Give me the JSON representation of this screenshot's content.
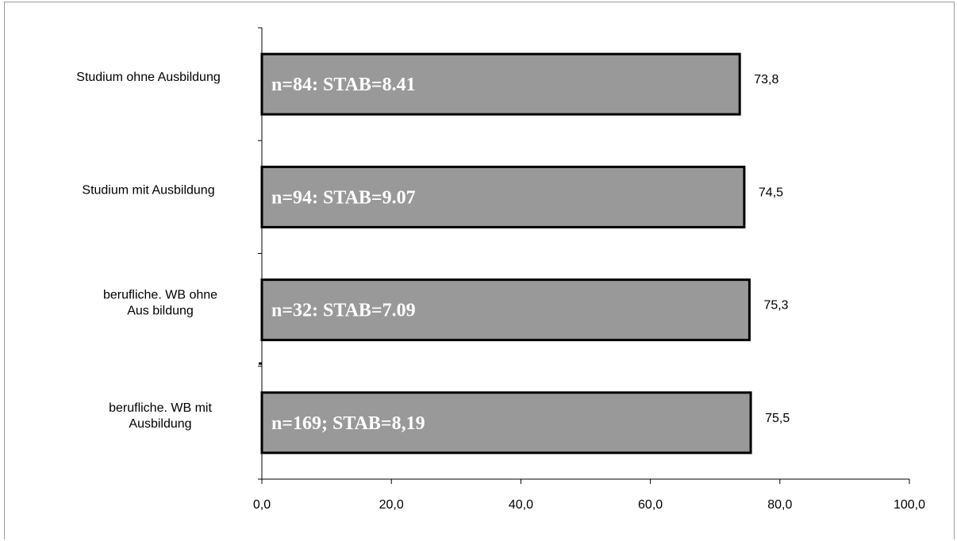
{
  "chart_data": {
    "type": "bar",
    "orientation": "horizontal",
    "categories": [
      "Studium ohne Ausbildung",
      "Studium mit Ausbildung",
      "berufliche. WB ohne Ausbildung",
      "berufliche. WB mit Ausbildung"
    ],
    "category_label_lines": [
      [
        "Studium ohne Ausbildung"
      ],
      [
        "Studium mit Ausbildung"
      ],
      [
        "berufliche. WB ohne",
        "Aus bildung"
      ],
      [
        "berufliche. WB mit",
        "Ausbildung"
      ]
    ],
    "values": [
      73.8,
      74.5,
      75.3,
      75.5
    ],
    "value_labels": [
      "73,8",
      "74,5",
      "75,3",
      "75,5"
    ],
    "annotations": [
      "n=84: STAB=8.41",
      "n=94: STAB=9.07",
      "n=32: STAB=7.09",
      "n=169; STAB=8,19"
    ],
    "xlim": [
      0,
      100
    ],
    "xticks": [
      0,
      20,
      40,
      60,
      80,
      100
    ],
    "xtick_labels": [
      "0,0",
      "20,0",
      "40,0",
      "60,0",
      "80,0",
      "100,0"
    ],
    "title": "",
    "xlabel": "",
    "ylabel": "",
    "grid": false,
    "legend": "none",
    "bar_color": "#999999",
    "bar_border_color": "#000000"
  }
}
